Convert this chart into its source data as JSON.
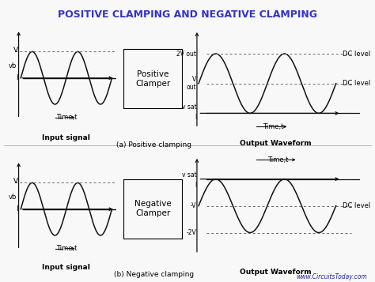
{
  "title": "POSITIVE CLAMPING AND NEGATIVE CLAMPING",
  "title_color": "#3333cc",
  "title_fontsize": 9,
  "background_color": "#f8f8f8",
  "watermark": "www.CircuitsToday.com",
  "watermark_color": "#2222aa",
  "box_pos": "Positive\nClamper",
  "box_neg": "Negative\nClamper",
  "line_color": "#111111",
  "dotted_color": "#666666",
  "label_pos_input": "Input signal",
  "label_pos_output": "Output Waveform",
  "label_neg_input": "Input signal",
  "label_neg_output": "Output Waveform",
  "caption_pos": "(a) Positive clamping",
  "caption_neg": "(b) Negative clamping",
  "xlabel": "Time,t"
}
